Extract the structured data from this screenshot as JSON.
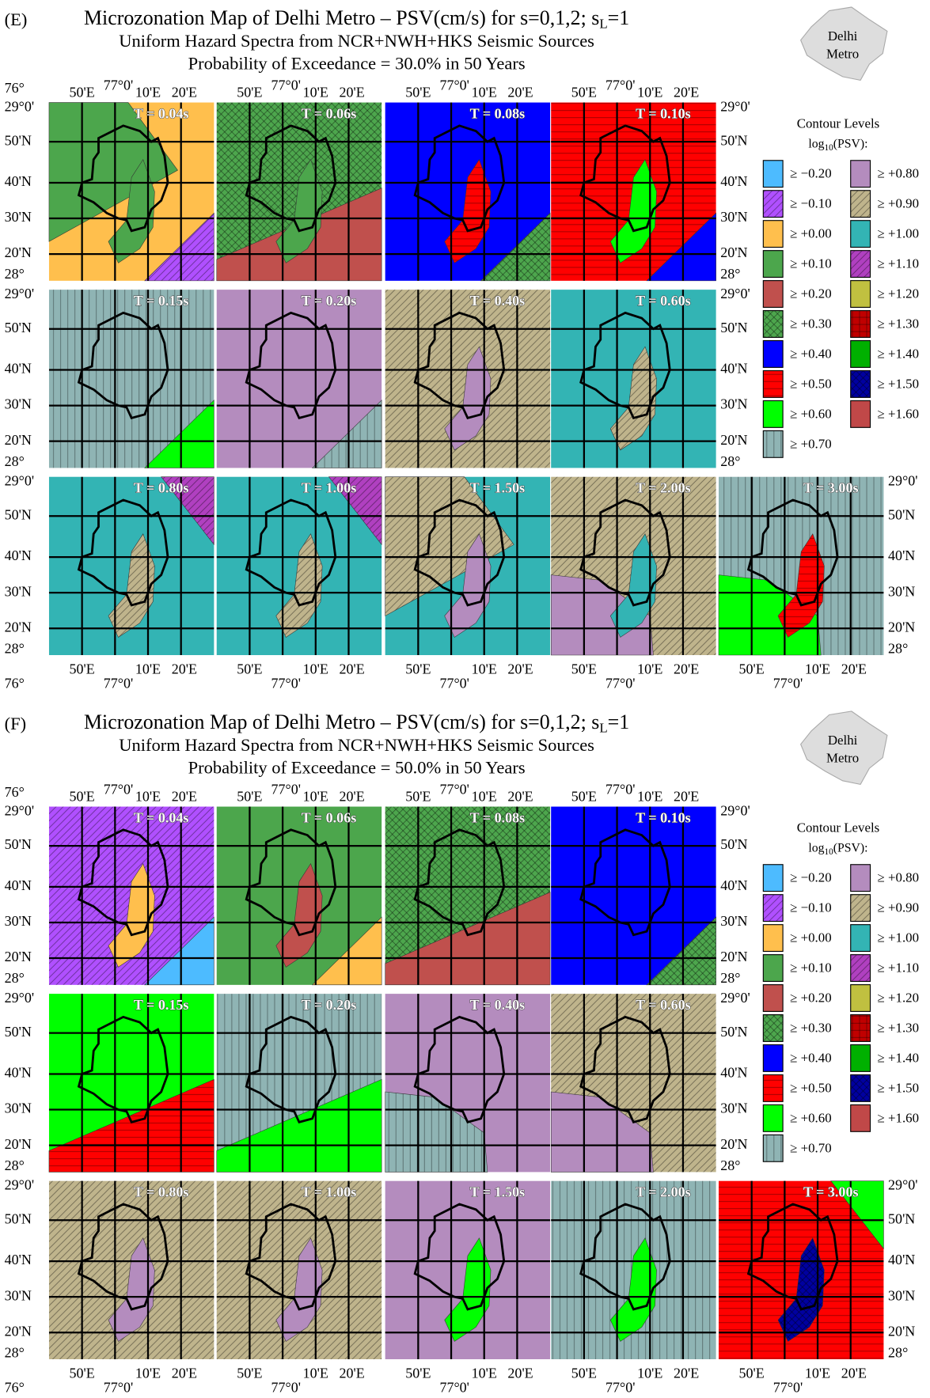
{
  "legend_title": "Contour Levels",
  "legend_unit": {
    "main": "log",
    "subscript": "10",
    "end": "(PSV):"
  },
  "inset": [
    "Delhi",
    "Metro"
  ],
  "lat_labels": [
    "29°0'",
    "50'N",
    "40'N",
    "30'N",
    "20'N",
    "28°"
  ],
  "lon_labels": [
    "76°",
    "50'E",
    "77°0'",
    "10'E",
    "20'E"
  ],
  "legend": [
    {
      "label": "≥ −0.20",
      "color": "#4dbbff"
    },
    {
      "label": "≥ −0.10",
      "color": "#b050ff",
      "pattern": "diag"
    },
    {
      "label": "≥ +0.00",
      "color": "#ffbf4d"
    },
    {
      "label": "≥ +0.10",
      "color": "#4ca64c"
    },
    {
      "label": "≥ +0.20",
      "color": "#c0504d"
    },
    {
      "label": "≥ +0.30",
      "color": "#4da64d",
      "pattern": "cross"
    },
    {
      "label": "≥ +0.40",
      "color": "#0000ff"
    },
    {
      "label": "≥ +0.50",
      "color": "#ff0000",
      "pattern": "horiz"
    },
    {
      "label": "≥ +0.60",
      "color": "#00ff00"
    },
    {
      "label": "≥ +0.70",
      "color": "#8fb4b4",
      "pattern": "vert"
    },
    {
      "label": "≥ +0.80",
      "color": "#b48cbe"
    },
    {
      "label": "≥ +0.90",
      "color": "#bfb48c",
      "pattern": "diag"
    },
    {
      "label": "≥ +1.00",
      "color": "#33b4b4"
    },
    {
      "label": "≥ +1.10",
      "color": "#b040c0",
      "pattern": "diag"
    },
    {
      "label": "≥ +1.20",
      "color": "#c0c040"
    },
    {
      "label": "≥ +1.30",
      "color": "#c00000",
      "pattern": "grid"
    },
    {
      "label": "≥ +1.40",
      "color": "#00b000"
    },
    {
      "label": "≥ +1.50",
      "color": "#0000a0",
      "pattern": "cross"
    },
    {
      "label": "≥ +1.60",
      "color": "#c04848"
    }
  ],
  "panels": [
    {
      "label": "(E)",
      "title": "Microzonation Map of Delhi Metro – PSV(cm/s) for s=0,1,2; s",
      "title_subscript": "L",
      "title_end": "=1",
      "subtitle": "Uniform Hazard Spectra from NCR+NWH+HKS Seismic Sources",
      "probability": "Probability of Exceedance = 30.0% in 50 Years",
      "tiles": [
        {
          "label": "T = 0.04s",
          "fill": "#ffbf4d",
          "patches": [
            {
              "color": "#4ca64c",
              "at": "top-left"
            },
            {
              "color": "#4ca64c",
              "at": "center"
            },
            {
              "color": "#b050ff",
              "at": "bottom-right"
            }
          ]
        },
        {
          "label": "T = 0.06s",
          "fill": "#4da64d",
          "patches": [
            {
              "color": "#c0504d",
              "at": "bottom"
            },
            {
              "color": "#4ca64c",
              "at": "center"
            }
          ]
        },
        {
          "label": "T = 0.08s",
          "fill": "#0000ff",
          "patches": [
            {
              "color": "#4da64d",
              "at": "bottom-right"
            },
            {
              "color": "#ff0000",
              "at": "center"
            }
          ]
        },
        {
          "label": "T = 0.10s",
          "fill": "#ff0000",
          "patches": [
            {
              "color": "#0000ff",
              "at": "bottom-right"
            },
            {
              "color": "#00ff00",
              "at": "center"
            }
          ]
        },
        {
          "label": "T = 0.15s",
          "fill": "#8fb4b4",
          "patches": [
            {
              "color": "#00ff00",
              "at": "bottom-right"
            }
          ]
        },
        {
          "label": "T = 0.20s",
          "fill": "#b48cbe",
          "patches": [
            {
              "color": "#8fb4b4",
              "at": "bottom-right"
            }
          ]
        },
        {
          "label": "T = 0.40s",
          "fill": "#bfb48c",
          "patches": [
            {
              "color": "#b48cbe",
              "at": "center"
            }
          ]
        },
        {
          "label": "T = 0.60s",
          "fill": "#33b4b4",
          "patches": [
            {
              "color": "#bfb48c",
              "at": "center"
            }
          ]
        },
        {
          "label": "T = 0.80s",
          "fill": "#33b4b4",
          "patches": [
            {
              "color": "#b040c0",
              "at": "top-right"
            },
            {
              "color": "#bfb48c",
              "at": "center"
            }
          ]
        },
        {
          "label": "T = 1.00s",
          "fill": "#33b4b4",
          "patches": [
            {
              "color": "#b040c0",
              "at": "top-right"
            },
            {
              "color": "#bfb48c",
              "at": "center"
            }
          ]
        },
        {
          "label": "T = 1.50s",
          "fill": "#33b4b4",
          "patches": [
            {
              "color": "#bfb48c",
              "at": "top-left"
            },
            {
              "color": "#b48cbe",
              "at": "center"
            }
          ]
        },
        {
          "label": "T = 2.00s",
          "fill": "#bfb48c",
          "patches": [
            {
              "color": "#b48cbe",
              "at": "bottom-left"
            },
            {
              "color": "#33b4b4",
              "at": "center"
            }
          ]
        },
        {
          "label": "T = 3.00s",
          "fill": "#8fb4b4",
          "patches": [
            {
              "color": "#00ff00",
              "at": "bottom-left"
            },
            {
              "color": "#ff0000",
              "at": "center"
            }
          ]
        }
      ]
    },
    {
      "label": "(F)",
      "title": "Microzonation Map of Delhi Metro – PSV(cm/s) for s=0,1,2; s",
      "title_subscript": "L",
      "title_end": "=1",
      "subtitle": "Uniform Hazard Spectra from NCR+NWH+HKS Seismic Sources",
      "probability": "Probability of Exceedance = 50.0% in 50 Years",
      "tiles": [
        {
          "label": "T = 0.04s",
          "fill": "#b050ff",
          "patches": [
            {
              "color": "#4dbbff",
              "at": "bottom-right"
            },
            {
              "color": "#ffbf4d",
              "at": "center"
            }
          ]
        },
        {
          "label": "T = 0.06s",
          "fill": "#4ca64c",
          "patches": [
            {
              "color": "#ffbf4d",
              "at": "bottom-right"
            },
            {
              "color": "#c0504d",
              "at": "center"
            }
          ]
        },
        {
          "label": "T = 0.08s",
          "fill": "#4da64d",
          "patches": [
            {
              "color": "#c0504d",
              "at": "bottom"
            }
          ]
        },
        {
          "label": "T = 0.10s",
          "fill": "#0000ff",
          "patches": [
            {
              "color": "#4da64d",
              "at": "bottom-right"
            }
          ]
        },
        {
          "label": "T = 0.15s",
          "fill": "#00ff00",
          "patches": [
            {
              "color": "#ff0000",
              "at": "bottom"
            }
          ]
        },
        {
          "label": "T = 0.20s",
          "fill": "#8fb4b4",
          "patches": [
            {
              "color": "#00ff00",
              "at": "bottom"
            }
          ]
        },
        {
          "label": "T = 0.40s",
          "fill": "#b48cbe",
          "patches": [
            {
              "color": "#8fb4b4",
              "at": "bottom-left"
            }
          ]
        },
        {
          "label": "T = 0.60s",
          "fill": "#bfb48c",
          "patches": [
            {
              "color": "#b48cbe",
              "at": "bottom-left"
            }
          ]
        },
        {
          "label": "T = 0.80s",
          "fill": "#bfb48c",
          "patches": [
            {
              "color": "#b48cbe",
              "at": "center"
            }
          ]
        },
        {
          "label": "T = 1.00s",
          "fill": "#bfb48c",
          "patches": [
            {
              "color": "#b48cbe",
              "at": "center"
            }
          ]
        },
        {
          "label": "T = 1.50s",
          "fill": "#b48cbe",
          "patches": [
            {
              "color": "#00ff00",
              "at": "center"
            }
          ]
        },
        {
          "label": "T = 2.00s",
          "fill": "#8fb4b4",
          "patches": [
            {
              "color": "#00ff00",
              "at": "center"
            }
          ]
        },
        {
          "label": "T = 3.00s",
          "fill": "#ff0000",
          "patches": [
            {
              "color": "#00ff00",
              "at": "top-right"
            },
            {
              "color": "#0000a0",
              "at": "center"
            }
          ]
        }
      ]
    }
  ]
}
